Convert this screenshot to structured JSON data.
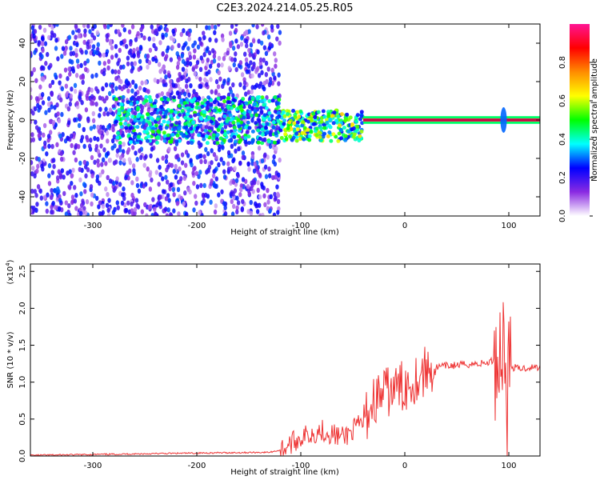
{
  "title": "C2E3.2024.214.05.25.R05",
  "chart_data": [
    {
      "type": "heatmap",
      "xlabel": "Height of straight line (km)",
      "ylabel": "Frequency (Hz)",
      "xlim": [
        -360,
        130
      ],
      "ylim": [
        -50,
        50
      ],
      "xticks": [
        -300,
        -200,
        -100,
        0,
        100
      ],
      "yticks": [
        -40,
        -20,
        0,
        20,
        40
      ],
      "colorbar": {
        "label": "Normalized spectral amplitude",
        "range": [
          0.0,
          1.0
        ],
        "ticks": [
          "0.0",
          "0.2",
          "0.4",
          "0.6",
          "0.8"
        ],
        "colors": [
          "#ffffff",
          "#8a2be2",
          "#0000ff",
          "#00ffff",
          "#00ff00",
          "#ffff00",
          "#ff8c00",
          "#ff0000",
          "#ff1493"
        ]
      },
      "features": {
        "noise_region_x": [
          -360,
          -120
        ],
        "noise_amplitude": 0.25,
        "transition_region_x": [
          -120,
          -40
        ],
        "transition_amplitude": 0.45,
        "carrier_line_x": [
          -40,
          130
        ],
        "carrier_frequency_hz": 0,
        "carrier_amplitude": 0.95,
        "spike_x": 95
      }
    },
    {
      "type": "line",
      "xlabel": "Height of straight line (km)",
      "ylabel": "SNR (10 * v/v)",
      "yscale_label": "(x10",
      "yscale_exponent": "4",
      "xlim": [
        -360,
        130
      ],
      "ylim": [
        0,
        2.6
      ],
      "xticks": [
        -300,
        -200,
        -100,
        0,
        100
      ],
      "yticks": [
        "0.0",
        "0.5",
        "1.0",
        "1.5",
        "2.0",
        "2.5"
      ],
      "color": "#ee3333",
      "series": [
        {
          "x": [
            -360,
            -300,
            -200,
            -130,
            -120,
            -100,
            -80,
            -60,
            -40,
            -30,
            -20,
            -10,
            0,
            10,
            20,
            30,
            40,
            50,
            60,
            70,
            80,
            85,
            90,
            95,
            98,
            100,
            105,
            110,
            120,
            130
          ],
          "y": [
            0.01,
            0.02,
            0.04,
            0.05,
            0.08,
            0.25,
            0.35,
            0.25,
            0.45,
            0.75,
            0.85,
            0.9,
            0.95,
            1.05,
            1.15,
            1.2,
            1.22,
            1.23,
            1.24,
            1.25,
            1.26,
            1.3,
            1.35,
            1.6,
            0.8,
            1.2,
            1.2,
            1.18,
            1.2,
            1.2
          ]
        }
      ]
    }
  ]
}
